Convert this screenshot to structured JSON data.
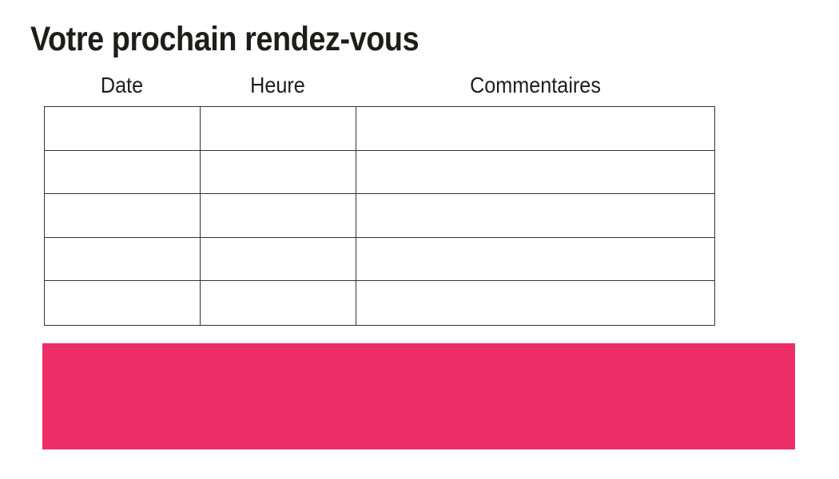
{
  "page": {
    "title": "Votre prochain rendez-vous"
  },
  "table": {
    "columns": [
      {
        "label": "Date"
      },
      {
        "label": "Heure"
      },
      {
        "label": "Commentaires"
      }
    ],
    "rows": [
      {
        "date": "",
        "heure": "",
        "commentaires": ""
      },
      {
        "date": "",
        "heure": "",
        "commentaires": ""
      },
      {
        "date": "",
        "heure": "",
        "commentaires": ""
      },
      {
        "date": "",
        "heure": "",
        "commentaires": ""
      },
      {
        "date": "",
        "heure": "",
        "commentaires": ""
      }
    ]
  },
  "colors": {
    "accent_pink": "#ED2D68",
    "text": "#1D1D1B",
    "table_border": "#333333"
  }
}
